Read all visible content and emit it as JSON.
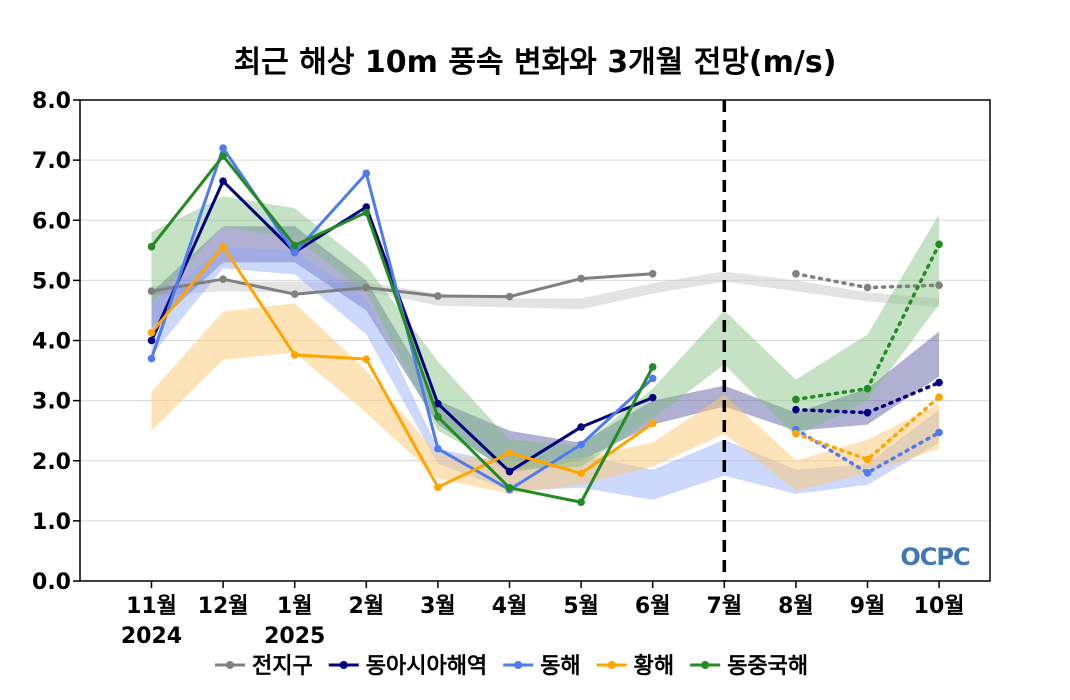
{
  "chart_data": {
    "type": "line",
    "title": "최근 해상 10m 풍속 변화와 3개월 전망(m/s)",
    "categories": [
      "11월",
      "12월",
      "1월",
      "2월",
      "3월",
      "4월",
      "5월",
      "6월",
      "7월",
      "8월",
      "9월",
      "10월"
    ],
    "category_sublabels": [
      "2024",
      "",
      "2025",
      "",
      "",
      "",
      "",
      "",
      "",
      "",
      "",
      ""
    ],
    "ylim": [
      0,
      8
    ],
    "yticks": [
      "0.0",
      "1.0",
      "2.0",
      "3.0",
      "4.0",
      "5.0",
      "6.0",
      "7.0",
      "8.0"
    ],
    "grid": true,
    "legend_position": "bottom",
    "divider_category": "7월",
    "logo_text": "OCPC",
    "series": [
      {
        "name": "전지구",
        "color": "#808080",
        "band_color": "#d0d0d0",
        "band_opacity": 0.6,
        "observed": [
          4.82,
          5.02,
          4.77,
          4.88,
          4.74,
          4.73,
          5.03,
          5.11,
          null,
          null,
          null,
          null
        ],
        "forecast": [
          null,
          null,
          null,
          null,
          null,
          null,
          null,
          null,
          null,
          5.11,
          4.88,
          4.92
        ],
        "band_low": [
          4.75,
          4.82,
          4.8,
          4.82,
          4.58,
          4.55,
          4.52,
          4.78,
          4.98,
          4.82,
          4.65,
          4.55
        ],
        "band_high": [
          4.9,
          4.98,
          4.98,
          4.97,
          4.78,
          4.7,
          4.7,
          4.95,
          5.15,
          5.0,
          4.8,
          4.7
        ]
      },
      {
        "name": "동아시아해역",
        "color": "#00007f",
        "band_color": "#3a3a8f",
        "band_opacity": 0.4,
        "observed": [
          4.0,
          6.65,
          5.47,
          6.22,
          2.95,
          1.82,
          2.56,
          3.05,
          null,
          null,
          null,
          null
        ],
        "forecast": [
          null,
          null,
          null,
          null,
          null,
          null,
          null,
          null,
          null,
          2.85,
          2.8,
          3.3
        ],
        "band_low": [
          4.2,
          5.3,
          5.3,
          4.5,
          2.6,
          1.8,
          2.0,
          2.6,
          2.9,
          2.5,
          2.6,
          3.4
        ],
        "band_high": [
          4.8,
          5.9,
          5.9,
          5.0,
          3.0,
          2.5,
          2.3,
          3.0,
          3.25,
          2.8,
          3.2,
          4.15
        ]
      },
      {
        "name": "동해",
        "color": "#4f7bf0",
        "band_color": "#8fa8f8",
        "band_opacity": 0.45,
        "observed": [
          3.7,
          7.2,
          5.46,
          6.78,
          2.2,
          1.52,
          2.27,
          3.37,
          null,
          null,
          null,
          null
        ],
        "forecast": [
          null,
          null,
          null,
          null,
          null,
          null,
          null,
          null,
          null,
          2.52,
          1.8,
          2.47
        ],
        "band_low": [
          3.75,
          5.2,
          5.1,
          4.1,
          1.95,
          1.5,
          1.55,
          1.35,
          1.75,
          1.45,
          1.6,
          2.3
        ],
        "band_high": [
          4.6,
          5.55,
          5.5,
          4.7,
          2.2,
          1.95,
          2.1,
          1.85,
          2.35,
          1.85,
          1.95,
          2.85
        ]
      },
      {
        "name": "황해",
        "color": "#ffa500",
        "band_color": "#fcc870",
        "band_opacity": 0.5,
        "observed": [
          4.13,
          5.56,
          3.76,
          3.69,
          1.56,
          2.13,
          1.79,
          2.62,
          null,
          null,
          null,
          null
        ],
        "forecast": [
          null,
          null,
          null,
          null,
          null,
          null,
          null,
          null,
          null,
          2.45,
          2.02,
          3.06
        ],
        "band_low": [
          2.5,
          3.68,
          3.8,
          2.8,
          1.7,
          1.45,
          1.6,
          1.9,
          2.45,
          1.5,
          1.8,
          2.2
        ],
        "band_high": [
          3.15,
          4.48,
          4.62,
          3.5,
          2.1,
          2.0,
          2.05,
          2.3,
          3.1,
          2.0,
          2.35,
          2.95
        ]
      },
      {
        "name": "동중국해",
        "color": "#228b22",
        "band_color": "#7fbf7f",
        "band_opacity": 0.45,
        "observed": [
          5.56,
          7.07,
          5.58,
          6.13,
          2.73,
          1.55,
          1.31,
          3.56,
          null,
          null,
          null,
          null
        ],
        "forecast": [
          null,
          null,
          null,
          null,
          null,
          null,
          null,
          null,
          null,
          3.02,
          3.2,
          5.6
        ],
        "band_low": [
          4.6,
          5.9,
          5.7,
          4.8,
          2.5,
          1.85,
          1.9,
          2.7,
          3.6,
          2.4,
          3.0,
          4.6
        ],
        "band_high": [
          5.8,
          6.4,
          6.2,
          5.25,
          3.65,
          2.35,
          2.25,
          3.2,
          4.5,
          3.35,
          4.1,
          6.1
        ]
      }
    ]
  }
}
